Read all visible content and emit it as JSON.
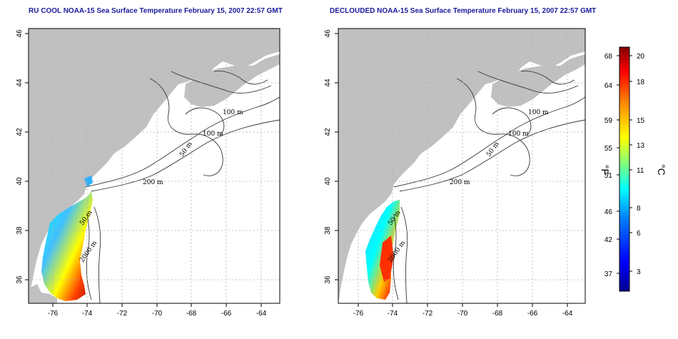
{
  "panels": [
    {
      "title": "RU COOL NOAA-15 Sea Surface Temperature February 15, 2007 22:57 GMT",
      "contour_labels": [
        "100 m",
        "100 m",
        "50 m",
        "200 m",
        "50 m",
        "2000 m"
      ]
    },
    {
      "title": "DECLOUDED NOAA-15 Sea Surface Temperature February 15, 2007 22:57 GMT",
      "contour_labels": [
        "100 m",
        "100 m",
        "50 m",
        "200 m",
        "50 m",
        "2000 m"
      ]
    }
  ],
  "axes": {
    "x_ticks": [
      "-76",
      "-74",
      "-72",
      "-70",
      "-68",
      "-66",
      "-64"
    ],
    "y_ticks": [
      "36",
      "38",
      "40",
      "42",
      "44",
      "46"
    ]
  },
  "colorbar": {
    "fahrenheit_label": "°F",
    "celsius_label": "°C",
    "fahrenheit_ticks": [
      "68",
      "64",
      "59",
      "55",
      "51",
      "46",
      "42",
      "37"
    ],
    "celsius_ticks": [
      "20",
      "18",
      "15",
      "13",
      "11",
      "8",
      "6",
      "3"
    ]
  },
  "colors": {
    "land": "#c0c0c0",
    "grid": "#b0b0b0",
    "title": "#1a1a9c",
    "colormap": [
      "#00008f",
      "#0000ff",
      "#0080ff",
      "#00ffff",
      "#80ff80",
      "#ffff00",
      "#ff8000",
      "#ff0000",
      "#800000"
    ]
  }
}
